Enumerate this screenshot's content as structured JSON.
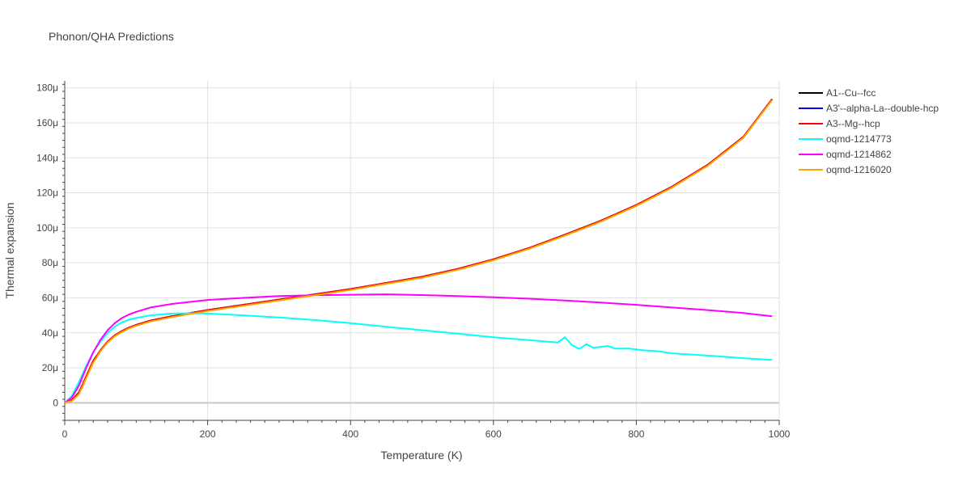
{
  "chart_data": {
    "type": "line",
    "title": "Phonon/QHA Predictions",
    "xlabel": "Temperature (K)",
    "ylabel": "Thermal expansion",
    "xlim": [
      0,
      1000
    ],
    "ylim": [
      -10,
      184
    ],
    "x_ticks": [
      0,
      200,
      400,
      600,
      800,
      1000
    ],
    "x_tick_labels": [
      "0",
      "200",
      "400",
      "600",
      "800",
      "1000"
    ],
    "y_ticks": [
      0,
      20,
      40,
      60,
      80,
      100,
      120,
      140,
      160,
      180
    ],
    "y_tick_labels": [
      "0",
      "20μ",
      "40μ",
      "60μ",
      "80μ",
      "100μ",
      "120μ",
      "140μ",
      "160μ",
      "180μ"
    ],
    "grid": true,
    "legend_position": "right",
    "series": [
      {
        "name": "A1--Cu--fcc",
        "color": "#000000",
        "points": [
          [
            0,
            0
          ],
          [
            10,
            1.5
          ],
          [
            20,
            6
          ],
          [
            30,
            15
          ],
          [
            40,
            24
          ],
          [
            50,
            30
          ],
          [
            60,
            35
          ],
          [
            70,
            38.5
          ],
          [
            80,
            41
          ],
          [
            90,
            43
          ],
          [
            100,
            44.5
          ],
          [
            120,
            47
          ],
          [
            150,
            49.5
          ],
          [
            200,
            53
          ],
          [
            250,
            56
          ],
          [
            300,
            59
          ],
          [
            350,
            62
          ],
          [
            400,
            65
          ],
          [
            450,
            68.5
          ],
          [
            500,
            72
          ],
          [
            550,
            76.5
          ],
          [
            600,
            82
          ],
          [
            650,
            88.5
          ],
          [
            700,
            96
          ],
          [
            750,
            104
          ],
          [
            800,
            113
          ],
          [
            850,
            123.5
          ],
          [
            900,
            136
          ],
          [
            950,
            152
          ],
          [
            990,
            173.5
          ]
        ]
      },
      {
        "name": "A3'--alpha-La--double-hcp",
        "color": "#0000ff",
        "points": [
          [
            0,
            0
          ],
          [
            10,
            1.5
          ],
          [
            20,
            6
          ],
          [
            30,
            15
          ],
          [
            40,
            24
          ],
          [
            50,
            30
          ],
          [
            60,
            35
          ],
          [
            70,
            38.5
          ],
          [
            80,
            41
          ],
          [
            90,
            43
          ],
          [
            100,
            44.5
          ],
          [
            120,
            47
          ],
          [
            150,
            49.5
          ],
          [
            200,
            53
          ],
          [
            250,
            56
          ],
          [
            300,
            59
          ],
          [
            350,
            62
          ],
          [
            400,
            65
          ],
          [
            450,
            68.5
          ],
          [
            500,
            72
          ],
          [
            550,
            76.5
          ],
          [
            600,
            82
          ],
          [
            650,
            88.5
          ],
          [
            700,
            96
          ],
          [
            750,
            104
          ],
          [
            800,
            113
          ],
          [
            850,
            123.5
          ],
          [
            900,
            136
          ],
          [
            950,
            152
          ],
          [
            990,
            173.5
          ]
        ]
      },
      {
        "name": "A3--Mg--hcp",
        "color": "#ff0000",
        "points": [
          [
            0,
            0
          ],
          [
            10,
            1.5
          ],
          [
            20,
            6
          ],
          [
            30,
            15
          ],
          [
            40,
            24
          ],
          [
            50,
            30
          ],
          [
            60,
            35
          ],
          [
            70,
            38.5
          ],
          [
            80,
            41
          ],
          [
            90,
            43
          ],
          [
            100,
            44.5
          ],
          [
            120,
            47
          ],
          [
            150,
            49.5
          ],
          [
            200,
            53
          ],
          [
            250,
            56
          ],
          [
            300,
            59
          ],
          [
            350,
            62
          ],
          [
            400,
            65
          ],
          [
            450,
            68.5
          ],
          [
            500,
            72
          ],
          [
            550,
            76.5
          ],
          [
            600,
            82
          ],
          [
            650,
            88.5
          ],
          [
            700,
            96
          ],
          [
            750,
            104
          ],
          [
            800,
            113
          ],
          [
            850,
            123.5
          ],
          [
            900,
            136
          ],
          [
            950,
            152
          ],
          [
            990,
            173.5
          ]
        ]
      },
      {
        "name": "oqmd-1214773",
        "color": "#00ffff",
        "points": [
          [
            0,
            0
          ],
          [
            10,
            4
          ],
          [
            20,
            12
          ],
          [
            30,
            21
          ],
          [
            40,
            29
          ],
          [
            50,
            35
          ],
          [
            60,
            40
          ],
          [
            70,
            43.5
          ],
          [
            80,
            46
          ],
          [
            90,
            47.5
          ],
          [
            100,
            48.5
          ],
          [
            120,
            50
          ],
          [
            150,
            51
          ],
          [
            180,
            51.2
          ],
          [
            200,
            51
          ],
          [
            250,
            50
          ],
          [
            300,
            48.8
          ],
          [
            350,
            47.3
          ],
          [
            400,
            45.5
          ],
          [
            450,
            43.5
          ],
          [
            500,
            41.5
          ],
          [
            550,
            39.5
          ],
          [
            600,
            37.5
          ],
          [
            650,
            35.8
          ],
          [
            690,
            34.5
          ],
          [
            700,
            37.5
          ],
          [
            710,
            33
          ],
          [
            720,
            30.8
          ],
          [
            730,
            33.5
          ],
          [
            740,
            31.5
          ],
          [
            760,
            32.5
          ],
          [
            770,
            31
          ],
          [
            790,
            31
          ],
          [
            810,
            30
          ],
          [
            830,
            29.5
          ],
          [
            850,
            28.3
          ],
          [
            880,
            27.5
          ],
          [
            900,
            27
          ],
          [
            950,
            25.5
          ],
          [
            990,
            24.5
          ]
        ]
      },
      {
        "name": "oqmd-1214862",
        "color": "#ff00ff",
        "points": [
          [
            0,
            0
          ],
          [
            10,
            3
          ],
          [
            20,
            10
          ],
          [
            30,
            20
          ],
          [
            40,
            29
          ],
          [
            50,
            36
          ],
          [
            60,
            41.5
          ],
          [
            70,
            45.5
          ],
          [
            80,
            48.5
          ],
          [
            90,
            50.5
          ],
          [
            100,
            52
          ],
          [
            120,
            54.5
          ],
          [
            150,
            56.5
          ],
          [
            200,
            58.8
          ],
          [
            250,
            60
          ],
          [
            300,
            61
          ],
          [
            350,
            61.5
          ],
          [
            400,
            61.8
          ],
          [
            450,
            62
          ],
          [
            500,
            61.6
          ],
          [
            550,
            61
          ],
          [
            600,
            60.3
          ],
          [
            650,
            59.5
          ],
          [
            700,
            58.5
          ],
          [
            750,
            57.3
          ],
          [
            800,
            56
          ],
          [
            850,
            54.5
          ],
          [
            900,
            53
          ],
          [
            950,
            51.3
          ],
          [
            990,
            49.5
          ]
        ]
      },
      {
        "name": "oqmd-1216020",
        "color": "#ffa500",
        "points": [
          [
            0,
            0
          ],
          [
            10,
            1
          ],
          [
            20,
            5
          ],
          [
            30,
            14
          ],
          [
            40,
            23
          ],
          [
            50,
            29.5
          ],
          [
            60,
            34.5
          ],
          [
            70,
            38
          ],
          [
            80,
            40.5
          ],
          [
            90,
            42.5
          ],
          [
            100,
            44
          ],
          [
            120,
            46.5
          ],
          [
            150,
            49
          ],
          [
            200,
            52.5
          ],
          [
            250,
            55.5
          ],
          [
            300,
            58.5
          ],
          [
            350,
            61.5
          ],
          [
            400,
            64.5
          ],
          [
            450,
            68
          ],
          [
            500,
            71.5
          ],
          [
            550,
            76
          ],
          [
            600,
            81.5
          ],
          [
            650,
            88
          ],
          [
            700,
            95.5
          ],
          [
            750,
            103.5
          ],
          [
            800,
            112.5
          ],
          [
            850,
            123
          ],
          [
            900,
            135.5
          ],
          [
            950,
            151.5
          ],
          [
            990,
            173
          ]
        ]
      }
    ]
  }
}
